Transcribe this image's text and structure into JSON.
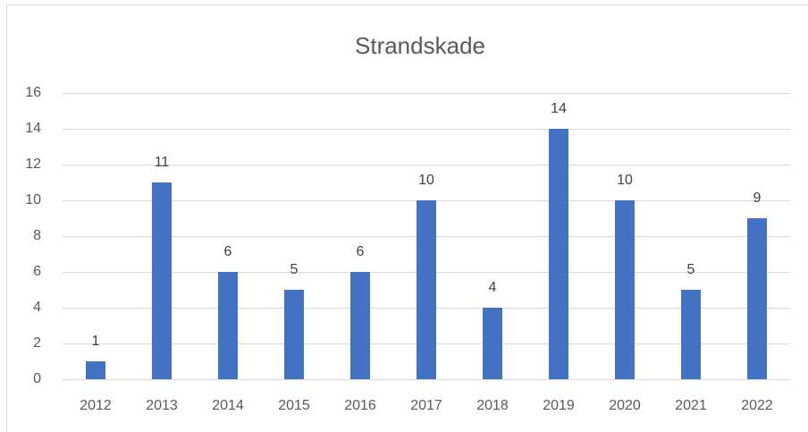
{
  "chart_data": {
    "type": "bar",
    "title": "Strandskade",
    "categories": [
      "2012",
      "2013",
      "2014",
      "2015",
      "2016",
      "2017",
      "2018",
      "2019",
      "2020",
      "2021",
      "2022"
    ],
    "values": [
      1,
      11,
      6,
      5,
      6,
      10,
      4,
      14,
      10,
      5,
      9
    ],
    "color": "#4472c4",
    "ylim": [
      0,
      16
    ],
    "yticks": [
      0,
      2,
      4,
      6,
      8,
      10,
      12,
      14,
      16
    ],
    "grid": true
  }
}
